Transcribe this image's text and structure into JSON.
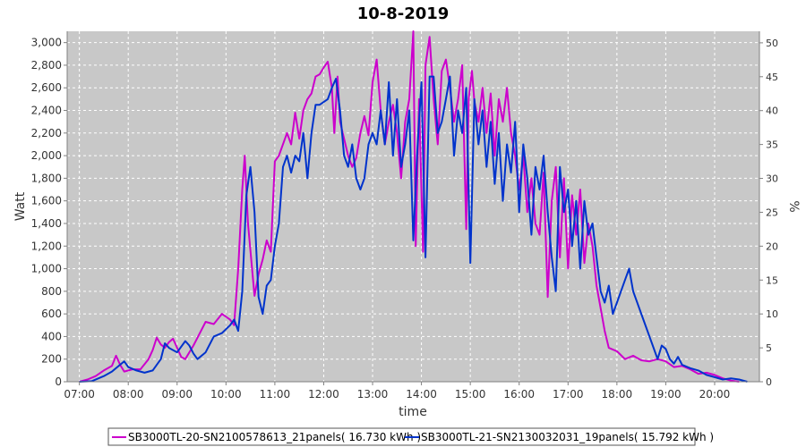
{
  "chart_data": {
    "type": "line",
    "title": "10-8-2019",
    "xlabel": "time",
    "ylabel": "Watt",
    "ylabel_right": "%",
    "x_ticks": [
      "07:00",
      "08:00",
      "09:00",
      "10:00",
      "11:00",
      "12:00",
      "13:00",
      "14:00",
      "15:00",
      "16:00",
      "17:00",
      "18:00",
      "19:00",
      "20:00"
    ],
    "xlim": [
      "06:45",
      "20:55"
    ],
    "ylim": [
      0,
      3100
    ],
    "y_ticks": [
      0,
      200,
      400,
      600,
      800,
      1000,
      1200,
      1400,
      1600,
      1800,
      2000,
      2200,
      2400,
      2600,
      2800,
      3000
    ],
    "y_tick_labels": [
      "0",
      "200",
      "400",
      "600",
      "800",
      "1,000",
      "1,200",
      "1,400",
      "1,600",
      "1,800",
      "2,000",
      "2,200",
      "2,400",
      "2,600",
      "2,800",
      "3,000"
    ],
    "ylim_right": [
      0,
      51.7
    ],
    "y_ticks_right": [
      0,
      5,
      10,
      15,
      20,
      25,
      30,
      35,
      40,
      45,
      50
    ],
    "grid": true,
    "background": "#c8c8c8",
    "legend_position": "bottom",
    "series": [
      {
        "name": "SB3000TL-20-SN2100578613_21panels( 16.730 kWh )",
        "color": "#cc00cc",
        "points": [
          [
            "07:00",
            0
          ],
          [
            "07:10",
            20
          ],
          [
            "07:20",
            50
          ],
          [
            "07:30",
            100
          ],
          [
            "07:40",
            140
          ],
          [
            "07:45",
            230
          ],
          [
            "07:50",
            150
          ],
          [
            "07:55",
            90
          ],
          [
            "08:05",
            110
          ],
          [
            "08:15",
            110
          ],
          [
            "08:25",
            200
          ],
          [
            "08:30",
            280
          ],
          [
            "08:35",
            390
          ],
          [
            "08:40",
            330
          ],
          [
            "08:45",
            300
          ],
          [
            "08:50",
            350
          ],
          [
            "08:55",
            380
          ],
          [
            "09:00",
            300
          ],
          [
            "09:05",
            220
          ],
          [
            "09:10",
            200
          ],
          [
            "09:20",
            320
          ],
          [
            "09:30",
            460
          ],
          [
            "09:35",
            530
          ],
          [
            "09:45",
            510
          ],
          [
            "09:55",
            600
          ],
          [
            "10:05",
            550
          ],
          [
            "10:10",
            500
          ],
          [
            "10:15",
            1000
          ],
          [
            "10:20",
            1700
          ],
          [
            "10:23",
            2000
          ],
          [
            "10:27",
            1400
          ],
          [
            "10:35",
            760
          ],
          [
            "10:40",
            950
          ],
          [
            "10:45",
            1080
          ],
          [
            "10:50",
            1250
          ],
          [
            "10:55",
            1150
          ],
          [
            "11:00",
            1950
          ],
          [
            "11:05",
            2000
          ],
          [
            "11:15",
            2200
          ],
          [
            "11:20",
            2100
          ],
          [
            "11:25",
            2380
          ],
          [
            "11:30",
            2150
          ],
          [
            "11:35",
            2400
          ],
          [
            "11:40",
            2500
          ],
          [
            "11:45",
            2550
          ],
          [
            "11:50",
            2700
          ],
          [
            "11:55",
            2720
          ],
          [
            "12:00",
            2780
          ],
          [
            "12:05",
            2830
          ],
          [
            "12:10",
            2600
          ],
          [
            "12:13",
            2200
          ],
          [
            "12:17",
            2700
          ],
          [
            "12:20",
            2300
          ],
          [
            "12:25",
            2150
          ],
          [
            "12:30",
            2000
          ],
          [
            "12:35",
            1900
          ],
          [
            "12:40",
            1980
          ],
          [
            "12:45",
            2200
          ],
          [
            "12:50",
            2350
          ],
          [
            "12:55",
            2180
          ],
          [
            "13:00",
            2650
          ],
          [
            "13:05",
            2850
          ],
          [
            "13:10",
            2400
          ],
          [
            "13:15",
            2100
          ],
          [
            "13:20",
            2300
          ],
          [
            "13:25",
            2450
          ],
          [
            "13:30",
            2200
          ],
          [
            "13:35",
            1800
          ],
          [
            "13:40",
            2300
          ],
          [
            "13:45",
            2500
          ],
          [
            "13:50",
            3100
          ],
          [
            "13:53",
            1200
          ],
          [
            "13:57",
            2500
          ],
          [
            "14:02",
            1150
          ],
          [
            "14:05",
            2800
          ],
          [
            "14:10",
            3050
          ],
          [
            "14:15",
            2500
          ],
          [
            "14:20",
            2100
          ],
          [
            "14:25",
            2750
          ],
          [
            "14:30",
            2850
          ],
          [
            "14:35",
            2600
          ],
          [
            "14:40",
            2300
          ],
          [
            "14:45",
            2500
          ],
          [
            "14:50",
            2800
          ],
          [
            "14:55",
            1350
          ],
          [
            "14:58",
            2500
          ],
          [
            "15:02",
            2750
          ],
          [
            "15:05",
            2480
          ],
          [
            "15:10",
            2300
          ],
          [
            "15:15",
            2600
          ],
          [
            "15:20",
            2200
          ],
          [
            "15:25",
            2550
          ],
          [
            "15:30",
            2000
          ],
          [
            "15:35",
            2500
          ],
          [
            "15:40",
            2300
          ],
          [
            "15:45",
            2600
          ],
          [
            "15:50",
            2200
          ],
          [
            "15:55",
            2000
          ],
          [
            "16:00",
            1700
          ],
          [
            "16:05",
            2000
          ],
          [
            "16:10",
            1500
          ],
          [
            "16:15",
            1800
          ],
          [
            "16:20",
            1400
          ],
          [
            "16:25",
            1300
          ],
          [
            "16:30",
            1850
          ],
          [
            "16:35",
            750
          ],
          [
            "16:40",
            1600
          ],
          [
            "16:45",
            1900
          ],
          [
            "16:50",
            1100
          ],
          [
            "16:55",
            1800
          ],
          [
            "17:00",
            1000
          ],
          [
            "17:05",
            1650
          ],
          [
            "17:10",
            1300
          ],
          [
            "17:15",
            1700
          ],
          [
            "17:20",
            1050
          ],
          [
            "17:25",
            1400
          ],
          [
            "17:30",
            1200
          ],
          [
            "17:35",
            850
          ],
          [
            "17:40",
            650
          ],
          [
            "17:45",
            450
          ],
          [
            "17:50",
            300
          ],
          [
            "18:00",
            270
          ],
          [
            "18:10",
            200
          ],
          [
            "18:20",
            230
          ],
          [
            "18:30",
            190
          ],
          [
            "18:40",
            180
          ],
          [
            "18:50",
            200
          ],
          [
            "19:00",
            180
          ],
          [
            "19:10",
            130
          ],
          [
            "19:20",
            140
          ],
          [
            "19:30",
            110
          ],
          [
            "19:40",
            70
          ],
          [
            "19:50",
            80
          ],
          [
            "20:00",
            60
          ],
          [
            "20:10",
            30
          ],
          [
            "20:20",
            10
          ],
          [
            "20:30",
            0
          ]
        ]
      },
      {
        "name": "SB3000TL-21-SN2130032031_19panels( 15.792 kWh )",
        "color": "#0033cc",
        "points": [
          [
            "07:00",
            0
          ],
          [
            "07:15",
            5
          ],
          [
            "07:30",
            50
          ],
          [
            "07:40",
            90
          ],
          [
            "07:50",
            150
          ],
          [
            "07:55",
            180
          ],
          [
            "08:00",
            130
          ],
          [
            "08:10",
            100
          ],
          [
            "08:20",
            80
          ],
          [
            "08:30",
            100
          ],
          [
            "08:40",
            200
          ],
          [
            "08:45",
            340
          ],
          [
            "08:50",
            300
          ],
          [
            "08:55",
            280
          ],
          [
            "09:00",
            260
          ],
          [
            "09:10",
            360
          ],
          [
            "09:15",
            320
          ],
          [
            "09:20",
            250
          ],
          [
            "09:25",
            200
          ],
          [
            "09:35",
            260
          ],
          [
            "09:45",
            400
          ],
          [
            "09:55",
            430
          ],
          [
            "10:05",
            500
          ],
          [
            "10:10",
            550
          ],
          [
            "10:15",
            450
          ],
          [
            "10:20",
            800
          ],
          [
            "10:25",
            1650
          ],
          [
            "10:30",
            1900
          ],
          [
            "10:35",
            1500
          ],
          [
            "10:40",
            750
          ],
          [
            "10:45",
            600
          ],
          [
            "10:50",
            850
          ],
          [
            "10:55",
            900
          ],
          [
            "11:00",
            1200
          ],
          [
            "11:05",
            1400
          ],
          [
            "11:10",
            1900
          ],
          [
            "11:15",
            2000
          ],
          [
            "11:20",
            1850
          ],
          [
            "11:25",
            2000
          ],
          [
            "11:30",
            1950
          ],
          [
            "11:35",
            2200
          ],
          [
            "11:40",
            1800
          ],
          [
            "11:45",
            2200
          ],
          [
            "11:50",
            2450
          ],
          [
            "11:55",
            2450
          ],
          [
            "12:05",
            2500
          ],
          [
            "12:10",
            2600
          ],
          [
            "12:15",
            2680
          ],
          [
            "12:20",
            2400
          ],
          [
            "12:25",
            2000
          ],
          [
            "12:30",
            1900
          ],
          [
            "12:35",
            2100
          ],
          [
            "12:40",
            1800
          ],
          [
            "12:45",
            1700
          ],
          [
            "12:50",
            1800
          ],
          [
            "12:55",
            2100
          ],
          [
            "13:00",
            2200
          ],
          [
            "13:05",
            2100
          ],
          [
            "13:10",
            2400
          ],
          [
            "13:15",
            2100
          ],
          [
            "13:20",
            2650
          ],
          [
            "13:25",
            2000
          ],
          [
            "13:30",
            2500
          ],
          [
            "13:35",
            1900
          ],
          [
            "13:40",
            2100
          ],
          [
            "13:45",
            2400
          ],
          [
            "13:50",
            1250
          ],
          [
            "13:55",
            2050
          ],
          [
            "14:00",
            2650
          ],
          [
            "14:05",
            1100
          ],
          [
            "14:10",
            2700
          ],
          [
            "14:15",
            2700
          ],
          [
            "14:20",
            2200
          ],
          [
            "14:25",
            2300
          ],
          [
            "14:30",
            2500
          ],
          [
            "14:35",
            2700
          ],
          [
            "14:40",
            2000
          ],
          [
            "14:45",
            2400
          ],
          [
            "14:50",
            2200
          ],
          [
            "14:55",
            2600
          ],
          [
            "15:00",
            1050
          ],
          [
            "15:05",
            2500
          ],
          [
            "15:10",
            2100
          ],
          [
            "15:15",
            2400
          ],
          [
            "15:20",
            1900
          ],
          [
            "15:25",
            2300
          ],
          [
            "15:30",
            1750
          ],
          [
            "15:35",
            2200
          ],
          [
            "15:40",
            1600
          ],
          [
            "15:45",
            2100
          ],
          [
            "15:50",
            1850
          ],
          [
            "15:55",
            2300
          ],
          [
            "16:00",
            1500
          ],
          [
            "16:05",
            2100
          ],
          [
            "16:10",
            1800
          ],
          [
            "16:15",
            1300
          ],
          [
            "16:20",
            1900
          ],
          [
            "16:25",
            1700
          ],
          [
            "16:30",
            2000
          ],
          [
            "16:35",
            1500
          ],
          [
            "16:40",
            1100
          ],
          [
            "16:45",
            800
          ],
          [
            "16:50",
            1900
          ],
          [
            "16:55",
            1500
          ],
          [
            "17:00",
            1700
          ],
          [
            "17:05",
            1200
          ],
          [
            "17:10",
            1600
          ],
          [
            "17:15",
            1000
          ],
          [
            "17:20",
            1600
          ],
          [
            "17:25",
            1300
          ],
          [
            "17:30",
            1400
          ],
          [
            "17:35",
            1100
          ],
          [
            "17:40",
            800
          ],
          [
            "17:45",
            700
          ],
          [
            "17:50",
            850
          ],
          [
            "17:55",
            600
          ],
          [
            "18:00",
            700
          ],
          [
            "18:05",
            800
          ],
          [
            "18:10",
            900
          ],
          [
            "18:15",
            1000
          ],
          [
            "18:20",
            800
          ],
          [
            "18:30",
            600
          ],
          [
            "18:40",
            400
          ],
          [
            "18:45",
            300
          ],
          [
            "18:50",
            200
          ],
          [
            "18:55",
            320
          ],
          [
            "19:00",
            290
          ],
          [
            "19:05",
            200
          ],
          [
            "19:10",
            160
          ],
          [
            "19:15",
            220
          ],
          [
            "19:20",
            150
          ],
          [
            "19:30",
            120
          ],
          [
            "19:40",
            100
          ],
          [
            "19:50",
            60
          ],
          [
            "20:00",
            40
          ],
          [
            "20:10",
            20
          ],
          [
            "20:20",
            30
          ],
          [
            "20:30",
            20
          ],
          [
            "20:40",
            0
          ]
        ]
      }
    ]
  }
}
